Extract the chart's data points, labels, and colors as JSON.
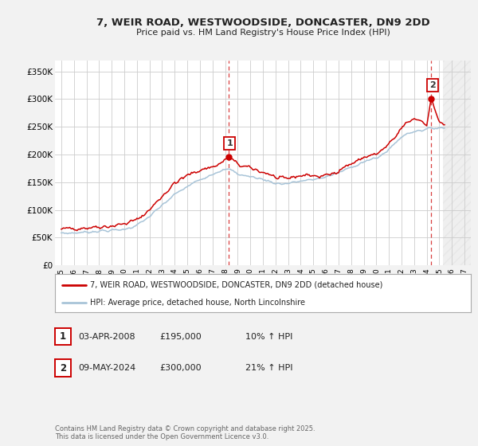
{
  "title": "7, WEIR ROAD, WESTWOODSIDE, DONCASTER, DN9 2DD",
  "subtitle": "Price paid vs. HM Land Registry's House Price Index (HPI)",
  "bg_color": "#f2f2f2",
  "plot_bg_color": "#ffffff",
  "grid_color": "#cccccc",
  "red_color": "#cc0000",
  "blue_color": "#a8c4d8",
  "xlim": [
    1994.5,
    2027.5
  ],
  "ylim": [
    0,
    370000
  ],
  "yticks": [
    0,
    50000,
    100000,
    150000,
    200000,
    250000,
    300000,
    350000
  ],
  "ytick_labels": [
    "£0",
    "£50K",
    "£100K",
    "£150K",
    "£200K",
    "£250K",
    "£300K",
    "£350K"
  ],
  "xticks": [
    1995,
    1996,
    1997,
    1998,
    1999,
    2000,
    2001,
    2002,
    2003,
    2004,
    2005,
    2006,
    2007,
    2008,
    2009,
    2010,
    2011,
    2012,
    2013,
    2014,
    2015,
    2016,
    2017,
    2018,
    2019,
    2020,
    2021,
    2022,
    2023,
    2024,
    2025,
    2026,
    2027
  ],
  "sale1_x": 2008.25,
  "sale1_y": 195000,
  "sale2_x": 2024.36,
  "sale2_y": 300000,
  "legend1_text": "7, WEIR ROAD, WESTWOODSIDE, DONCASTER, DN9 2DD (detached house)",
  "legend2_text": "HPI: Average price, detached house, North Lincolnshire",
  "ann1_col1": "03-APR-2008",
  "ann1_col2": "£195,000",
  "ann1_col3": "10% ↑ HPI",
  "ann2_col1": "09-MAY-2024",
  "ann2_col2": "£300,000",
  "ann2_col3": "21% ↑ HPI",
  "footer": "Contains HM Land Registry data © Crown copyright and database right 2025.\nThis data is licensed under the Open Government Licence v3.0."
}
